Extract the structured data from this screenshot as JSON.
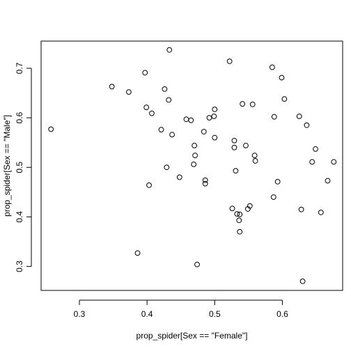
{
  "chart_data": {
    "type": "scatter",
    "title": "",
    "xlabel": "prop_spider[Sex == \"Female\"]",
    "ylabel": "prop_spider[Sex == \"Male\"]",
    "xlim": [
      0.2434,
      0.6891
    ],
    "ylim": [
      0.2516,
      0.7548
    ],
    "xticks": [
      0.3,
      0.4,
      0.5,
      0.6
    ],
    "yticks": [
      0.3,
      0.4,
      0.5,
      0.6,
      0.7
    ],
    "xtick_labels": [
      "0.3",
      "0.4",
      "0.5",
      "0.6"
    ],
    "ytick_labels": [
      "0.3",
      "0.4",
      "0.5",
      "0.6",
      "0.7"
    ],
    "grid": false,
    "series": [
      {
        "points": [
          [
            0.258,
            0.577
          ],
          [
            0.348,
            0.663
          ],
          [
            0.373,
            0.652
          ],
          [
            0.386,
            0.327
          ],
          [
            0.397,
            0.691
          ],
          [
            0.399,
            0.621
          ],
          [
            0.403,
            0.464
          ],
          [
            0.407,
            0.609
          ],
          [
            0.421,
            0.576
          ],
          [
            0.426,
            0.658
          ],
          [
            0.429,
            0.5
          ],
          [
            0.432,
            0.636
          ],
          [
            0.433,
            0.737
          ],
          [
            0.437,
            0.566
          ],
          [
            0.448,
            0.48
          ],
          [
            0.458,
            0.597
          ],
          [
            0.465,
            0.595
          ],
          [
            0.469,
            0.506
          ],
          [
            0.47,
            0.544
          ],
          [
            0.471,
            0.524
          ],
          [
            0.474,
            0.304
          ],
          [
            0.484,
            0.572
          ],
          [
            0.486,
            0.474
          ],
          [
            0.486,
            0.467
          ],
          [
            0.492,
            0.6
          ],
          [
            0.499,
            0.603
          ],
          [
            0.5,
            0.617
          ],
          [
            0.5,
            0.56
          ],
          [
            0.522,
            0.714
          ],
          [
            0.526,
            0.417
          ],
          [
            0.529,
            0.554
          ],
          [
            0.529,
            0.54
          ],
          [
            0.531,
            0.493
          ],
          [
            0.533,
            0.406
          ],
          [
            0.536,
            0.393
          ],
          [
            0.537,
            0.405
          ],
          [
            0.537,
            0.37
          ],
          [
            0.541,
            0.628
          ],
          [
            0.546,
            0.544
          ],
          [
            0.549,
            0.416
          ],
          [
            0.552,
            0.422
          ],
          [
            0.556,
            0.627
          ],
          [
            0.559,
            0.524
          ],
          [
            0.56,
            0.513
          ],
          [
            0.585,
            0.702
          ],
          [
            0.587,
            0.44
          ],
          [
            0.588,
            0.602
          ],
          [
            0.593,
            0.471
          ],
          [
            0.599,
            0.681
          ],
          [
            0.603,
            0.638
          ],
          [
            0.625,
            0.603
          ],
          [
            0.628,
            0.415
          ],
          [
            0.63,
            0.27
          ],
          [
            0.636,
            0.585
          ],
          [
            0.644,
            0.511
          ],
          [
            0.649,
            0.537
          ],
          [
            0.657,
            0.409
          ],
          [
            0.667,
            0.473
          ],
          [
            0.676,
            0.511
          ]
        ]
      }
    ]
  }
}
